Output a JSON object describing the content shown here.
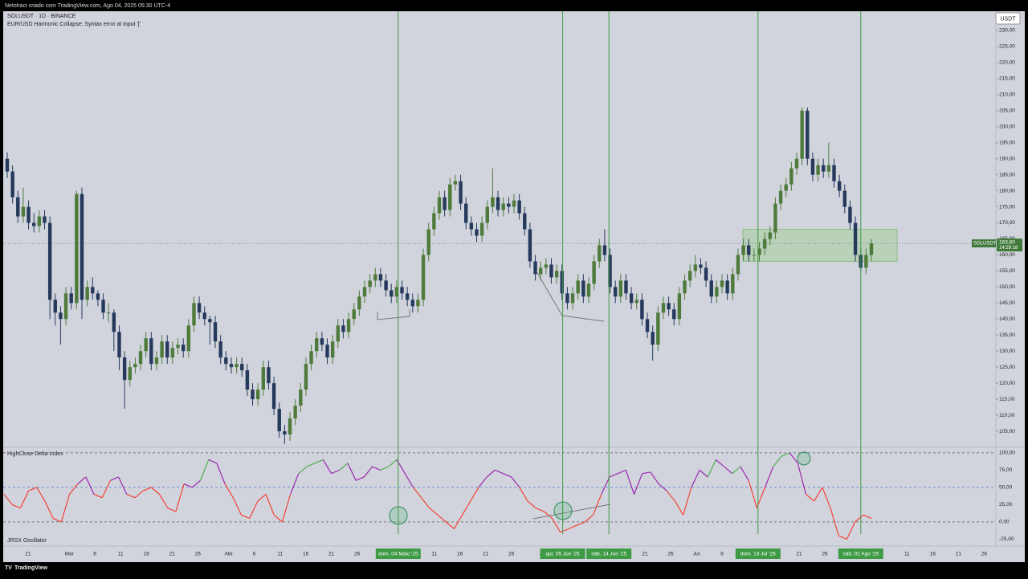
{
  "header": {
    "caption": "Netolraci criado com TradingView.com, Ago 04, 2025 05:30 UTC-4",
    "symbol": "SOLUSDT · 1D · BINANCE",
    "indicator_error": "EUR/USD Harmonic Collapse: Syntax error at input '['",
    "currency_button": "USDT"
  },
  "chart_data": {
    "type": "candlestick",
    "up_color": "#4e7a3b",
    "down_color": "#24395c",
    "ylim": [
      100,
      236
    ],
    "yticks": [
      {
        "value": 105,
        "label": "105,00"
      },
      {
        "value": 110,
        "label": "110,00"
      },
      {
        "value": 115,
        "label": "115,00"
      },
      {
        "value": 120,
        "label": "120,00"
      },
      {
        "value": 125,
        "label": "125,00"
      },
      {
        "value": 130,
        "label": "130,00"
      },
      {
        "value": 135,
        "label": "135,00"
      },
      {
        "value": 140,
        "label": "140,00"
      },
      {
        "value": 145,
        "label": "145,00"
      },
      {
        "value": 150,
        "label": "150,00"
      },
      {
        "value": 155,
        "label": "155,00"
      },
      {
        "value": 160,
        "label": "160,00"
      },
      {
        "value": 165,
        "label": "165,00"
      },
      {
        "value": 170,
        "label": "170,00"
      },
      {
        "value": 175,
        "label": "175,00"
      },
      {
        "value": 180,
        "label": "180,00"
      },
      {
        "value": 185,
        "label": "185,00"
      },
      {
        "value": 190,
        "label": "190,00"
      },
      {
        "value": 195,
        "label": "195,00"
      },
      {
        "value": 200,
        "label": "200,00"
      },
      {
        "value": 205,
        "label": "205,00"
      },
      {
        "value": 210,
        "label": "210,00"
      },
      {
        "value": 215,
        "label": "215,00"
      },
      {
        "value": 220,
        "label": "220,00"
      },
      {
        "value": 225,
        "label": "225,00"
      },
      {
        "value": 230,
        "label": "230,00"
      }
    ],
    "last_price": {
      "symbol": "SOLUSDT",
      "value": 163.6,
      "label": "163,60",
      "countdown": "14:29:18"
    },
    "zone": {
      "top": 168,
      "bottom": 158,
      "color": "#a8cfa0"
    },
    "ohlc": [
      [
        190,
        192,
        184,
        186
      ],
      [
        186,
        188,
        176,
        178
      ],
      [
        178,
        180,
        170,
        172
      ],
      [
        172,
        181,
        170,
        175
      ],
      [
        175,
        177,
        168,
        170
      ],
      [
        170,
        173,
        167,
        169
      ],
      [
        169,
        174,
        167,
        172
      ],
      [
        172,
        174,
        168,
        170
      ],
      [
        170,
        172,
        140,
        146
      ],
      [
        146,
        148,
        138,
        142
      ],
      [
        142,
        144,
        132,
        140
      ],
      [
        140,
        150,
        138,
        148
      ],
      [
        148,
        150,
        143,
        145
      ],
      [
        145,
        180,
        143,
        179
      ],
      [
        179,
        181,
        140,
        146
      ],
      [
        146,
        152,
        144,
        150
      ],
      [
        150,
        153,
        146,
        148
      ],
      [
        148,
        149,
        144,
        146
      ],
      [
        146,
        148,
        140,
        142
      ],
      [
        142,
        145,
        139,
        142
      ],
      [
        142,
        143,
        130,
        136
      ],
      [
        136,
        138,
        124,
        128
      ],
      [
        128,
        130,
        112,
        121
      ],
      [
        121,
        127,
        119,
        125
      ],
      [
        125,
        128,
        123,
        126
      ],
      [
        126,
        132,
        124,
        130
      ],
      [
        130,
        136,
        128,
        134
      ],
      [
        134,
        136,
        124,
        126
      ],
      [
        126,
        130,
        124,
        128
      ],
      [
        128,
        135,
        126,
        133
      ],
      [
        133,
        135,
        126,
        128
      ],
      [
        128,
        133,
        126,
        131
      ],
      [
        131,
        134,
        129,
        132
      ],
      [
        132,
        134,
        128,
        130
      ],
      [
        130,
        140,
        128,
        138
      ],
      [
        138,
        147,
        136,
        145
      ],
      [
        145,
        147,
        140,
        142
      ],
      [
        142,
        144,
        138,
        140
      ],
      [
        140,
        141,
        132,
        139
      ],
      [
        139,
        141,
        131,
        133
      ],
      [
        133,
        135,
        126,
        128
      ],
      [
        128,
        130,
        124,
        126
      ],
      [
        126,
        128,
        123,
        125
      ],
      [
        125,
        128,
        123,
        126
      ],
      [
        126,
        128,
        122,
        124
      ],
      [
        124,
        126,
        116,
        118
      ],
      [
        118,
        120,
        113,
        115
      ],
      [
        115,
        120,
        113,
        118
      ],
      [
        118,
        127,
        116,
        125
      ],
      [
        125,
        127,
        118,
        120
      ],
      [
        120,
        122,
        110,
        112
      ],
      [
        112,
        114,
        103,
        105
      ],
      [
        105,
        107,
        101,
        104
      ],
      [
        104,
        111,
        102,
        109
      ],
      [
        109,
        115,
        107,
        113
      ],
      [
        113,
        120,
        111,
        118
      ],
      [
        118,
        128,
        116,
        126
      ],
      [
        126,
        132,
        124,
        130
      ],
      [
        130,
        136,
        128,
        134
      ],
      [
        134,
        136,
        130,
        132
      ],
      [
        132,
        134,
        126,
        128
      ],
      [
        128,
        135,
        126,
        133
      ],
      [
        133,
        140,
        131,
        138
      ],
      [
        138,
        140,
        134,
        136
      ],
      [
        136,
        142,
        134,
        140
      ],
      [
        140,
        145,
        138,
        143
      ],
      [
        143,
        149,
        141,
        147
      ],
      [
        147,
        152,
        145,
        150
      ],
      [
        150,
        154,
        148,
        152
      ],
      [
        152,
        156,
        150,
        154
      ],
      [
        154,
        156,
        150,
        152
      ],
      [
        152,
        154,
        147,
        149
      ],
      [
        149,
        151,
        145,
        147
      ],
      [
        147,
        152,
        145,
        150
      ],
      [
        150,
        152,
        146,
        148
      ],
      [
        148,
        150,
        144,
        146
      ],
      [
        146,
        148,
        142,
        144
      ],
      [
        144,
        148,
        142,
        146
      ],
      [
        146,
        162,
        144,
        160
      ],
      [
        160,
        170,
        158,
        168
      ],
      [
        168,
        175,
        166,
        173
      ],
      [
        173,
        180,
        171,
        178
      ],
      [
        178,
        180,
        172,
        174
      ],
      [
        174,
        184,
        172,
        182
      ],
      [
        182,
        185,
        180,
        183
      ],
      [
        183,
        185,
        174,
        176
      ],
      [
        176,
        178,
        168,
        170
      ],
      [
        170,
        172,
        166,
        168
      ],
      [
        168,
        170,
        164,
        166
      ],
      [
        166,
        172,
        164,
        170
      ],
      [
        170,
        177,
        168,
        175
      ],
      [
        175,
        187,
        173,
        178
      ],
      [
        178,
        180,
        172,
        174
      ],
      [
        174,
        178,
        172,
        176
      ],
      [
        176,
        178,
        173,
        175
      ],
      [
        175,
        179,
        173,
        177
      ],
      [
        177,
        179,
        171,
        173
      ],
      [
        173,
        175,
        166,
        168
      ],
      [
        168,
        170,
        156,
        158
      ],
      [
        158,
        160,
        152,
        154
      ],
      [
        154,
        158,
        152,
        156
      ],
      [
        156,
        159,
        154,
        157
      ],
      [
        157,
        159,
        151,
        153
      ],
      [
        153,
        157,
        151,
        155
      ],
      [
        155,
        157,
        146,
        148
      ],
      [
        148,
        150,
        143,
        145
      ],
      [
        145,
        150,
        143,
        148
      ],
      [
        148,
        154,
        146,
        152
      ],
      [
        152,
        154,
        145,
        147
      ],
      [
        147,
        153,
        145,
        151
      ],
      [
        151,
        160,
        149,
        158
      ],
      [
        158,
        165,
        156,
        163
      ],
      [
        163,
        168,
        158,
        160
      ],
      [
        160,
        162,
        148,
        150
      ],
      [
        150,
        152,
        145,
        147
      ],
      [
        147,
        154,
        145,
        152
      ],
      [
        152,
        154,
        146,
        148
      ],
      [
        148,
        150,
        143,
        145
      ],
      [
        145,
        148,
        143,
        146
      ],
      [
        146,
        148,
        138,
        140
      ],
      [
        140,
        142,
        134,
        136
      ],
      [
        136,
        138,
        127,
        132
      ],
      [
        132,
        144,
        130,
        142
      ],
      [
        142,
        147,
        140,
        145
      ],
      [
        145,
        147,
        141,
        143
      ],
      [
        143,
        145,
        138,
        140
      ],
      [
        140,
        150,
        138,
        148
      ],
      [
        148,
        154,
        146,
        152
      ],
      [
        152,
        157,
        150,
        155
      ],
      [
        155,
        160,
        153,
        157
      ],
      [
        157,
        159,
        154,
        156
      ],
      [
        156,
        158,
        150,
        152
      ],
      [
        152,
        154,
        145,
        147
      ],
      [
        147,
        152,
        145,
        150
      ],
      [
        150,
        154,
        148,
        152
      ],
      [
        152,
        154,
        146,
        148
      ],
      [
        148,
        156,
        146,
        154
      ],
      [
        154,
        162,
        152,
        160
      ],
      [
        160,
        165,
        158,
        163
      ],
      [
        163,
        165,
        158,
        160
      ],
      [
        160,
        162,
        158,
        160
      ],
      [
        160,
        164,
        158,
        162
      ],
      [
        162,
        167,
        160,
        165
      ],
      [
        165,
        169,
        163,
        167
      ],
      [
        167,
        178,
        165,
        176
      ],
      [
        176,
        182,
        174,
        180
      ],
      [
        180,
        184,
        178,
        182
      ],
      [
        182,
        189,
        180,
        187
      ],
      [
        187,
        192,
        185,
        190
      ],
      [
        190,
        206,
        188,
        205
      ],
      [
        205,
        206,
        188,
        190
      ],
      [
        190,
        192,
        183,
        185
      ],
      [
        185,
        190,
        183,
        188
      ],
      [
        188,
        190,
        184,
        186
      ],
      [
        186,
        195,
        184,
        188
      ],
      [
        188,
        190,
        181,
        183
      ],
      [
        183,
        185,
        178,
        180
      ],
      [
        180,
        182,
        173,
        175
      ],
      [
        175,
        177,
        168,
        170
      ],
      [
        170,
        172,
        158,
        160
      ],
      [
        160,
        162,
        155,
        156
      ],
      [
        156,
        162,
        154,
        160
      ],
      [
        160,
        165,
        158,
        163.6
      ]
    ],
    "x_labels": [
      "21",
      "Mar",
      "6",
      "11",
      "16",
      "21",
      "26",
      "Abr",
      "6",
      "11",
      "16",
      "21",
      "26",
      "dom. 04 Maio '25",
      "11",
      "16",
      "21",
      "26",
      "Ju",
      "qui. 05 Jun '25",
      "sáb. 14 Jun '25",
      "21",
      "26",
      "Jul",
      "6",
      "dom. 13 Jul '25",
      "21",
      "26",
      "sáb. 02 Ago '25",
      "11",
      "16",
      "21",
      "26"
    ]
  },
  "oscillator": {
    "title": "HighClose Delta Index",
    "footer": "JRSX Oscillator",
    "colors": {
      "high": "#4caf50",
      "mid": "#9c27b0",
      "low": "#f44336"
    },
    "ylim": [
      -35,
      108
    ],
    "yticks": [
      {
        "value": 100,
        "label": "100,00"
      },
      {
        "value": 75,
        "label": "75,00"
      },
      {
        "value": 50,
        "label": "50,00"
      },
      {
        "value": 25,
        "label": "25,00"
      },
      {
        "value": 0,
        "label": "0,00"
      },
      {
        "value": -25,
        "label": "-25,00"
      }
    ],
    "values": [
      40,
      25,
      20,
      45,
      50,
      30,
      5,
      0,
      40,
      55,
      65,
      40,
      35,
      60,
      65,
      40,
      35,
      45,
      50,
      40,
      20,
      15,
      55,
      50,
      60,
      90,
      85,
      55,
      35,
      10,
      5,
      30,
      40,
      10,
      0,
      40,
      70,
      80,
      85,
      90,
      70,
      75,
      85,
      60,
      65,
      80,
      75,
      80,
      90,
      70,
      50,
      35,
      20,
      10,
      0,
      -10,
      10,
      30,
      50,
      65,
      75,
      70,
      65,
      50,
      30,
      20,
      15,
      5,
      -15,
      -10,
      -5,
      0,
      10,
      40,
      65,
      70,
      75,
      40,
      70,
      72,
      55,
      45,
      30,
      10,
      50,
      75,
      65,
      90,
      80,
      70,
      80,
      60,
      20,
      50,
      80,
      95,
      100,
      85,
      40,
      30,
      50,
      20,
      -20,
      -25,
      0,
      10,
      5
    ]
  },
  "footer": {
    "brand": "TradingView"
  }
}
